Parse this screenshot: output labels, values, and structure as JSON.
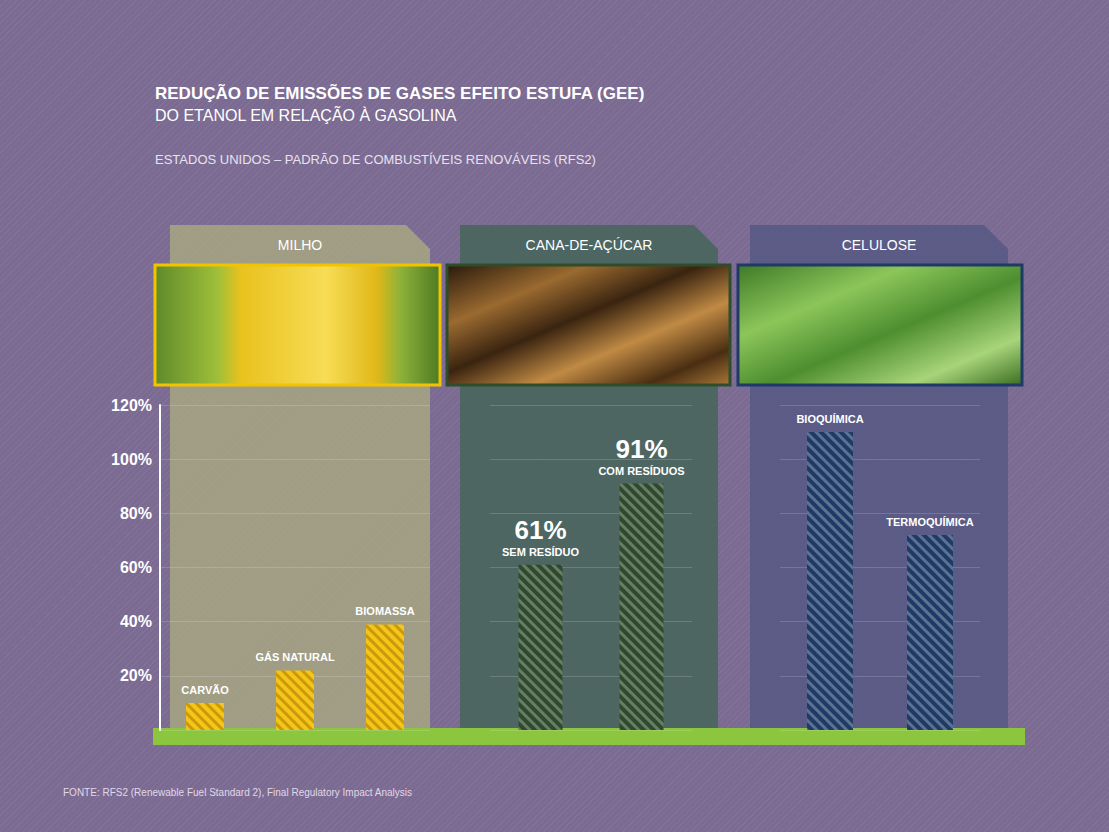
{
  "chart_data": {
    "type": "bar",
    "title": "REDUÇÃO DE EMISSÕES DE GASES EFEITO ESTUFA (GEE)",
    "subtitle": "DO ETANOL EM RELAÇÃO À GASOLINA",
    "caption": "ESTADOS UNIDOS – PADRÃO DE COMBUSTÍVEIS RENOVÁVEIS (RFS2)",
    "source": "FONTE: RFS2 (Renewable Fuel Standard 2), Final Regulatory Impact Analysis",
    "groups": [
      {
        "name": "MILHO",
        "categories": [
          "CARVÃO",
          "GÁS NATURAL",
          "BIOMASSA"
        ]
      },
      {
        "name": "CANA-DE-AÇÚCAR",
        "categories": [
          "SEM RESÍDUO",
          "COM RESÍDUOS"
        ]
      },
      {
        "name": "CELULOSE",
        "categories": [
          "BIOQUÍMICA",
          "TERMOQUÍMICA"
        ]
      }
    ],
    "categories": [
      "CARVÃO",
      "GÁS NATURAL",
      "BIOMASSA",
      "SEM RESÍDUO",
      "COM RESÍDUOS",
      "BIOQUÍMICA",
      "TERMOQUÍMICA"
    ],
    "values": [
      10,
      22,
      39,
      61,
      91,
      110,
      72
    ],
    "value_labels": [
      null,
      null,
      null,
      "61%",
      "91%",
      null,
      null
    ],
    "data_labels": true,
    "colors": [
      "#f5c518",
      "#f5c518",
      "#f5c518",
      "#2e4a2c",
      "#2e4a2c",
      "#1e3a66",
      "#1e3a66"
    ],
    "ylim": [
      0,
      120
    ],
    "yticks": [
      {
        "value": 20,
        "label": "20%"
      },
      {
        "value": 40,
        "label": "40%"
      },
      {
        "value": 60,
        "label": "60%"
      },
      {
        "value": 80,
        "label": "80%"
      },
      {
        "value": 100,
        "label": "100%"
      },
      {
        "value": 120,
        "label": "120%"
      }
    ],
    "grid": true,
    "tick_labels": "y"
  }
}
